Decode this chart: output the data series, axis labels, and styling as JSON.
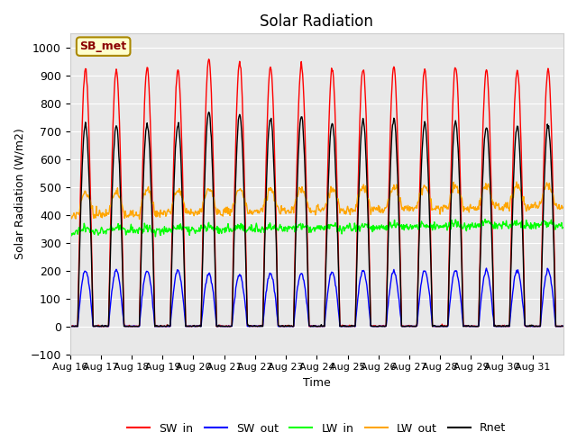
{
  "title": "Solar Radiation",
  "xlabel": "Time",
  "ylabel": "Solar Radiation (W/m2)",
  "ylim": [
    -100,
    1050
  ],
  "x_tick_labels": [
    "Aug 16",
    "Aug 17",
    "Aug 18",
    "Aug 19",
    "Aug 20",
    "Aug 21",
    "Aug 22",
    "Aug 23",
    "Aug 24",
    "Aug 25",
    "Aug 26",
    "Aug 27",
    "Aug 28",
    "Aug 29",
    "Aug 30",
    "Aug 31"
  ],
  "legend_labels": [
    "SW_in",
    "SW_out",
    "LW_in",
    "LW_out",
    "Rnet"
  ],
  "legend_colors": [
    "red",
    "blue",
    "lime",
    "orange",
    "black"
  ],
  "site_label": "SB_met",
  "bg_color": "#e8e8e8",
  "SW_in_peaks": [
    920,
    920,
    925,
    920,
    960,
    950,
    930,
    940,
    920,
    925,
    930,
    920,
    935,
    920,
    920,
    920
  ],
  "SW_out_peaks": [
    200,
    200,
    200,
    200,
    190,
    185,
    190,
    190,
    195,
    200,
    195,
    200,
    200,
    200,
    200,
    200
  ],
  "LW_in_base": 340,
  "LW_out_base": 400,
  "Rnet_peaks": [
    725,
    720,
    725,
    725,
    770,
    760,
    750,
    755,
    730,
    740,
    745,
    730,
    740,
    720,
    720,
    720
  ],
  "days": 16,
  "dt_minutes": 30
}
